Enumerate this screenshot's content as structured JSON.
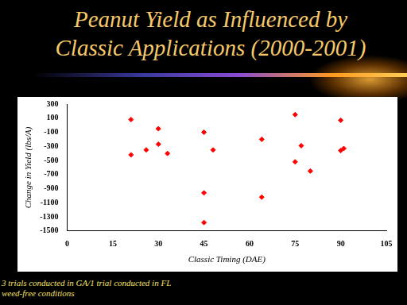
{
  "chart_data": {
    "type": "scatter",
    "title": [
      "Peanut Yield as Influenced by",
      "Classic Applications (2000-2001)"
    ],
    "x_label": "Classic Timing (DAE)",
    "y_label": "Change in Yield (lbs/A)",
    "annotations": [
      "3 trials conducted in GA/1 trial conducted in FL",
      "weed-free conditions"
    ],
    "x": [
      21,
      21,
      26,
      30,
      30,
      33,
      45,
      45,
      45,
      48,
      64,
      64,
      75,
      75,
      77,
      80,
      90,
      90,
      91
    ],
    "values": [
      80,
      -420,
      -350,
      -50,
      -270,
      -400,
      -100,
      -960,
      -1380,
      -350,
      -200,
      -1020,
      150,
      -520,
      -290,
      -650,
      70,
      -360,
      -330
    ],
    "color": "#ff0000",
    "marker": "diamond",
    "xlim": [
      0,
      105
    ],
    "xticks": [
      0,
      15,
      30,
      45,
      60,
      75,
      90,
      105
    ],
    "ylim": [
      -1500,
      300
    ],
    "yticks": [
      300,
      100,
      -100,
      -300,
      -500,
      -700,
      -900,
      -1100,
      -1300,
      -1500
    ],
    "grid": false
  }
}
